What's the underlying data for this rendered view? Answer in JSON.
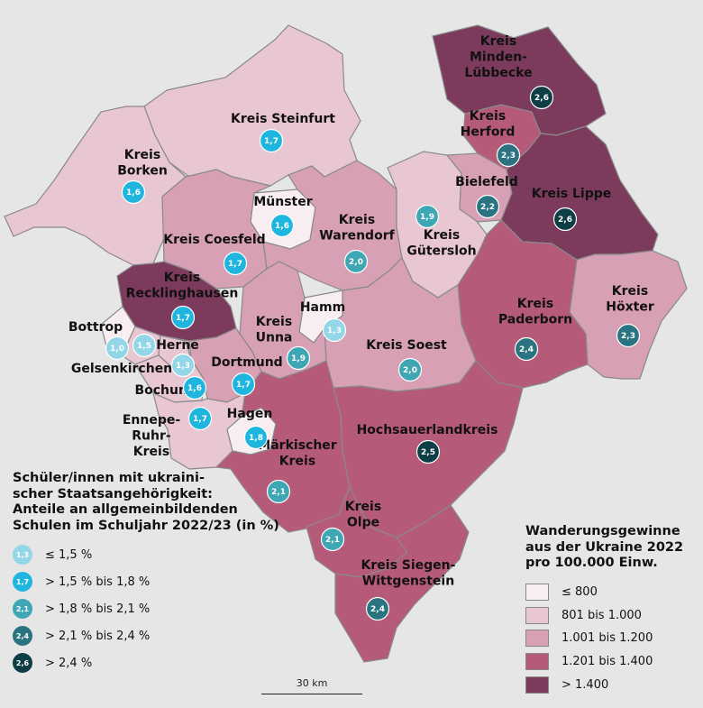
{
  "colors": {
    "background": "#e6e6e6",
    "migration_classes": [
      "#f8eef2",
      "#e8c6d2",
      "#d7a0b4",
      "#b65a7a",
      "#7c3a5c"
    ],
    "share_classes": [
      "#93d6e8",
      "#1eb6df",
      "#3fa7b4",
      "#2a7380",
      "#0d3d45"
    ]
  },
  "legend_students": {
    "title": "Schüler/innen mit ukraini-\nscher Staatsangehörigkeit:\nAnteile an allgemeinbildenden\nSchulen im Schuljahr 2022/23 (in %)",
    "items": [
      {
        "sample": "1,3",
        "label": "≤ 1,5 %"
      },
      {
        "sample": "1,7",
        "label": "> 1,5 % bis 1,8 %"
      },
      {
        "sample": "2,1",
        "label": "> 1,8 % bis 2,1 %"
      },
      {
        "sample": "2,4",
        "label": "> 2,1 % bis 2,4 %"
      },
      {
        "sample": "2,6",
        "label": "> 2,4 %"
      }
    ]
  },
  "legend_migration": {
    "title": "Wanderungsgewinne\naus der Ukraine 2022\npro 100.000 Einw.",
    "items": [
      "≤ 800",
      "801 bis 1.000",
      "1.001 bis 1.200",
      "1.201 bis 1.400",
      "> 1.400"
    ]
  },
  "scale": {
    "label": "30 km"
  },
  "regions": [
    {
      "name": "Kreis Steinfurt",
      "label_lines": [
        "Kreis Steinfurt"
      ],
      "migration_class": 1,
      "share": "1,7",
      "share_class": 1
    },
    {
      "name": "Kreis Borken",
      "label_lines": [
        "Kreis",
        "Borken"
      ],
      "migration_class": 1,
      "share": "1,6",
      "share_class": 1
    },
    {
      "name": "Münster",
      "label_lines": [
        "Münster"
      ],
      "migration_class": 0,
      "share": "1,6",
      "share_class": 1
    },
    {
      "name": "Kreis Coesfeld",
      "label_lines": [
        "Kreis Coesfeld"
      ],
      "migration_class": 2,
      "share": "1,7",
      "share_class": 1
    },
    {
      "name": "Kreis Warendorf",
      "label_lines": [
        "Kreis",
        "Warendorf"
      ],
      "migration_class": 2,
      "share": "2,0",
      "share_class": 2
    },
    {
      "name": "Kreis Gütersloh",
      "label_lines": [
        "Kreis",
        "Gütersloh"
      ],
      "migration_class": 1,
      "share": "1,9",
      "share_class": 2
    },
    {
      "name": "Bielefeld",
      "label_lines": [
        "Bielefeld"
      ],
      "migration_class": 2,
      "share": "2,2",
      "share_class": 3
    },
    {
      "name": "Kreis Herford",
      "label_lines": [
        "Kreis",
        "Herford"
      ],
      "migration_class": 3,
      "share": "2,3",
      "share_class": 3
    },
    {
      "name": "Kreis Minden-Lübbecke",
      "label_lines": [
        "Kreis",
        "Minden-",
        "Lübbecke"
      ],
      "migration_class": 4,
      "share": "2,6",
      "share_class": 4
    },
    {
      "name": "Kreis Lippe",
      "label_lines": [
        "Kreis Lippe"
      ],
      "migration_class": 4,
      "share": "2,6",
      "share_class": 4
    },
    {
      "name": "Kreis Höxter",
      "label_lines": [
        "Kreis",
        "Höxter"
      ],
      "migration_class": 2,
      "share": "2,3",
      "share_class": 3
    },
    {
      "name": "Kreis Paderborn",
      "label_lines": [
        "Kreis",
        "Paderborn"
      ],
      "migration_class": 3,
      "share": "2,4",
      "share_class": 3
    },
    {
      "name": "Kreis Soest",
      "label_lines": [
        "Kreis Soest"
      ],
      "migration_class": 2,
      "share": "2,0",
      "share_class": 2
    },
    {
      "name": "Hamm",
      "label_lines": [
        "Hamm"
      ],
      "migration_class": 0,
      "share": "1,3",
      "share_class": 0
    },
    {
      "name": "Kreis Unna",
      "label_lines": [
        "Kreis",
        "Unna"
      ],
      "migration_class": 2,
      "share": "1,9",
      "share_class": 2
    },
    {
      "name": "Kreis Recklinghausen",
      "label_lines": [
        "Kreis",
        "Recklinghausen"
      ],
      "migration_class": 4,
      "share": "1,7",
      "share_class": 1
    },
    {
      "name": "Bottrop",
      "label_lines": [
        "Bottrop"
      ],
      "migration_class": 0,
      "share": "1,0",
      "share_class": 0
    },
    {
      "name": "Gelsenkirchen",
      "label_lines": [
        "Gelsenkirchen"
      ],
      "migration_class": 1,
      "share": "1,5",
      "share_class": 0
    },
    {
      "name": "Herne",
      "label_lines": [
        "Herne"
      ],
      "migration_class": 1,
      "share": "1,3",
      "share_class": 0
    },
    {
      "name": "Bochum",
      "label_lines": [
        "Bochum"
      ],
      "migration_class": 1,
      "share": "1,6",
      "share_class": 1
    },
    {
      "name": "Dortmund",
      "label_lines": [
        "Dortmund"
      ],
      "migration_class": 2,
      "share": "1,7",
      "share_class": 1
    },
    {
      "name": "Ennepe-Ruhr-Kreis",
      "label_lines": [
        "Ennepe-",
        "Ruhr-",
        "Kreis"
      ],
      "migration_class": 1,
      "share": "1,7",
      "share_class": 1
    },
    {
      "name": "Hagen",
      "label_lines": [
        "Hagen"
      ],
      "migration_class": 0,
      "share": "1,8",
      "share_class": 1
    },
    {
      "name": "Märkischer Kreis",
      "label_lines": [
        "Märkischer",
        "Kreis"
      ],
      "migration_class": 3,
      "share": "2,1",
      "share_class": 2
    },
    {
      "name": "Hochsauerlandkreis",
      "label_lines": [
        "Hochsauerlandkreis"
      ],
      "migration_class": 3,
      "share": "2,5",
      "share_class": 4
    },
    {
      "name": "Kreis Olpe",
      "label_lines": [
        "Kreis",
        "Olpe"
      ],
      "migration_class": 3,
      "share": "2,1",
      "share_class": 2
    },
    {
      "name": "Kreis Siegen-Wittgenstein",
      "label_lines": [
        "Kreis Siegen-",
        "Wittgenstein"
      ],
      "migration_class": 3,
      "share": "2,4",
      "share_class": 3
    }
  ]
}
